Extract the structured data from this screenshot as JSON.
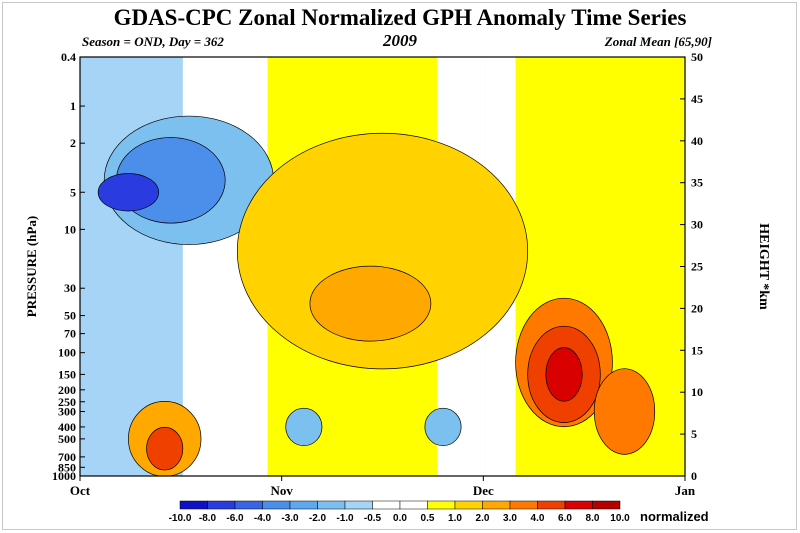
{
  "chart_data": {
    "type": "heatmap",
    "title": "GDAS-CPC Zonal Normalized GPH Anomaly Time Series",
    "subtitle_left": "Season = OND, Day = 362",
    "subtitle_center": "2009",
    "subtitle_right": "Zonal Mean [65,90]",
    "ylabel_left": "PRESSURE (hPa)",
    "ylabel_right": "HEIGHT *km",
    "x_ticks": [
      "Oct",
      "Nov",
      "Dec",
      "Jan"
    ],
    "y_ticks_left": [
      "0.4",
      "1",
      "2",
      "5",
      "10",
      "30",
      "50",
      "70",
      "100",
      "150",
      "200",
      "250",
      "300",
      "400",
      "500",
      "700",
      "850",
      "1000"
    ],
    "y_ticks_right": [
      "0",
      "5",
      "10",
      "15",
      "20",
      "25",
      "30",
      "35",
      "40",
      "45",
      "50"
    ],
    "colorbar_ticks": [
      "-10.0",
      "-8.0",
      "-6.0",
      "-4.0",
      "-3.0",
      "-2.0",
      "-1.0",
      "-0.5",
      "0.0",
      "0.5",
      "1.0",
      "2.0",
      "3.0",
      "4.0",
      "6.0",
      "8.0",
      "10.0"
    ],
    "colorbar_colors": [
      "#1010c8",
      "#2a3ce0",
      "#3a64e6",
      "#4b8fea",
      "#5ea9ee",
      "#7cc0f0",
      "#a6d4f6",
      "#ffffff",
      "#ffffff",
      "#ffff00",
      "#ffd200",
      "#ffa800",
      "#ff7800",
      "#f04000",
      "#d80000",
      "#b40000"
    ],
    "colorbar_unit": "normalized",
    "blobs": [
      {
        "level": "-2.0",
        "color": "#7cc0f0",
        "x": 18,
        "p": 4,
        "w": 14,
        "h": 1.2
      },
      {
        "level": "-3.0",
        "color": "#4b8fea",
        "x": 15,
        "p": 4,
        "w": 9,
        "h": 0.8
      },
      {
        "level": "-6.0",
        "color": "#2a3ce0",
        "x": 8,
        "p": 5,
        "w": 5,
        "h": 0.35
      },
      {
        "level": "1.0",
        "color": "#ffd200",
        "x": 50,
        "p": 15,
        "w": 24,
        "h": 2.2
      },
      {
        "level": "2.0",
        "color": "#ffa800",
        "x": 48,
        "p": 40,
        "w": 10,
        "h": 0.7
      },
      {
        "level": "3.0",
        "color": "#ff7800",
        "x": 80,
        "p": 120,
        "w": 8,
        "h": 1.2
      },
      {
        "level": "4.0",
        "color": "#f04000",
        "x": 80,
        "p": 150,
        "w": 6,
        "h": 0.9
      },
      {
        "level": "6.0",
        "color": "#d80000",
        "x": 80,
        "p": 150,
        "w": 3,
        "h": 0.5
      },
      {
        "level": "2.0",
        "color": "#ffa800",
        "x": 14,
        "p": 500,
        "w": 6,
        "h": 0.7
      },
      {
        "level": "4.0",
        "color": "#f04000",
        "x": 14,
        "p": 600,
        "w": 3,
        "h": 0.4
      },
      {
        "level": "-2.0",
        "color": "#7cc0f0",
        "x": 37,
        "p": 400,
        "w": 3,
        "h": 0.35
      },
      {
        "level": "-2.0",
        "color": "#7cc0f0",
        "x": 60,
        "p": 400,
        "w": 3,
        "h": 0.35
      },
      {
        "level": "3.0",
        "color": "#ff7800",
        "x": 90,
        "p": 300,
        "w": 5,
        "h": 0.8
      }
    ]
  }
}
